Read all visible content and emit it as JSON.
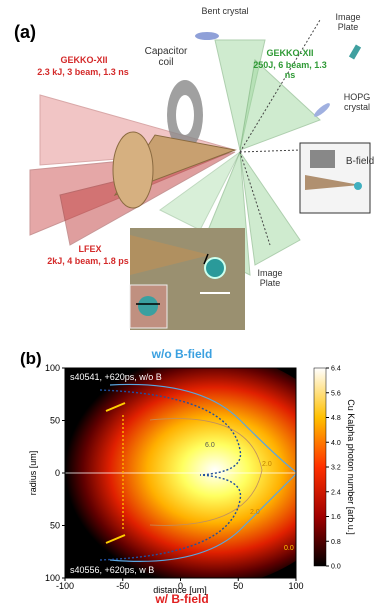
{
  "panel_a": {
    "label": "(a)",
    "bent_crystal": "Bent crystal",
    "image_plate_top": "Image Plate",
    "gekko_left": {
      "name": "GEKKO-XII",
      "spec": "2.3 kJ, 3 beam, 1.3 ns"
    },
    "capacitor_coil": "Capacitor coil",
    "gekko_right": {
      "name": "GEKKO-XII",
      "spec": "250J, 6 beam, 1.3 ns"
    },
    "hopg": "HOPG crystal",
    "b_field": "B-field",
    "lfex": {
      "name": "LFEX",
      "spec": "2kJ, 4 beam, 1.8 ps"
    },
    "image_plate_bottom": "Image Plate"
  },
  "panel_b": {
    "label": "(b)",
    "title_top": "w/o B-field",
    "title_bottom": "w/ B-field",
    "shot_top": "s40541, +620ps, w/o B",
    "shot_bottom": "s40556, +620ps, w   B",
    "xlabel": "distance [um]",
    "ylabel": "radius [um]",
    "xlim": [
      -100,
      100
    ],
    "ylim": [
      -100,
      100
    ],
    "xticks": [
      -100,
      -50,
      0,
      50,
      100
    ],
    "yticks": [
      {
        "value": -100,
        "label": "100"
      },
      {
        "value": -50,
        "label": "50"
      },
      0,
      50,
      100
    ],
    "colorbar": {
      "label": "Cu Kalpha photon number [arb.u.]",
      "lim": [
        0,
        6.4
      ],
      "ticks": [
        {
          "value": 0,
          "label": "0.0"
        },
        0.8,
        1.6,
        2.4,
        3.2,
        {
          "value": 4,
          "label": "4.0"
        },
        4.8,
        5.6,
        6.4
      ]
    },
    "contour_labels": [
      "6.0",
      "2.0",
      "2.0",
      "0.0"
    ]
  }
}
